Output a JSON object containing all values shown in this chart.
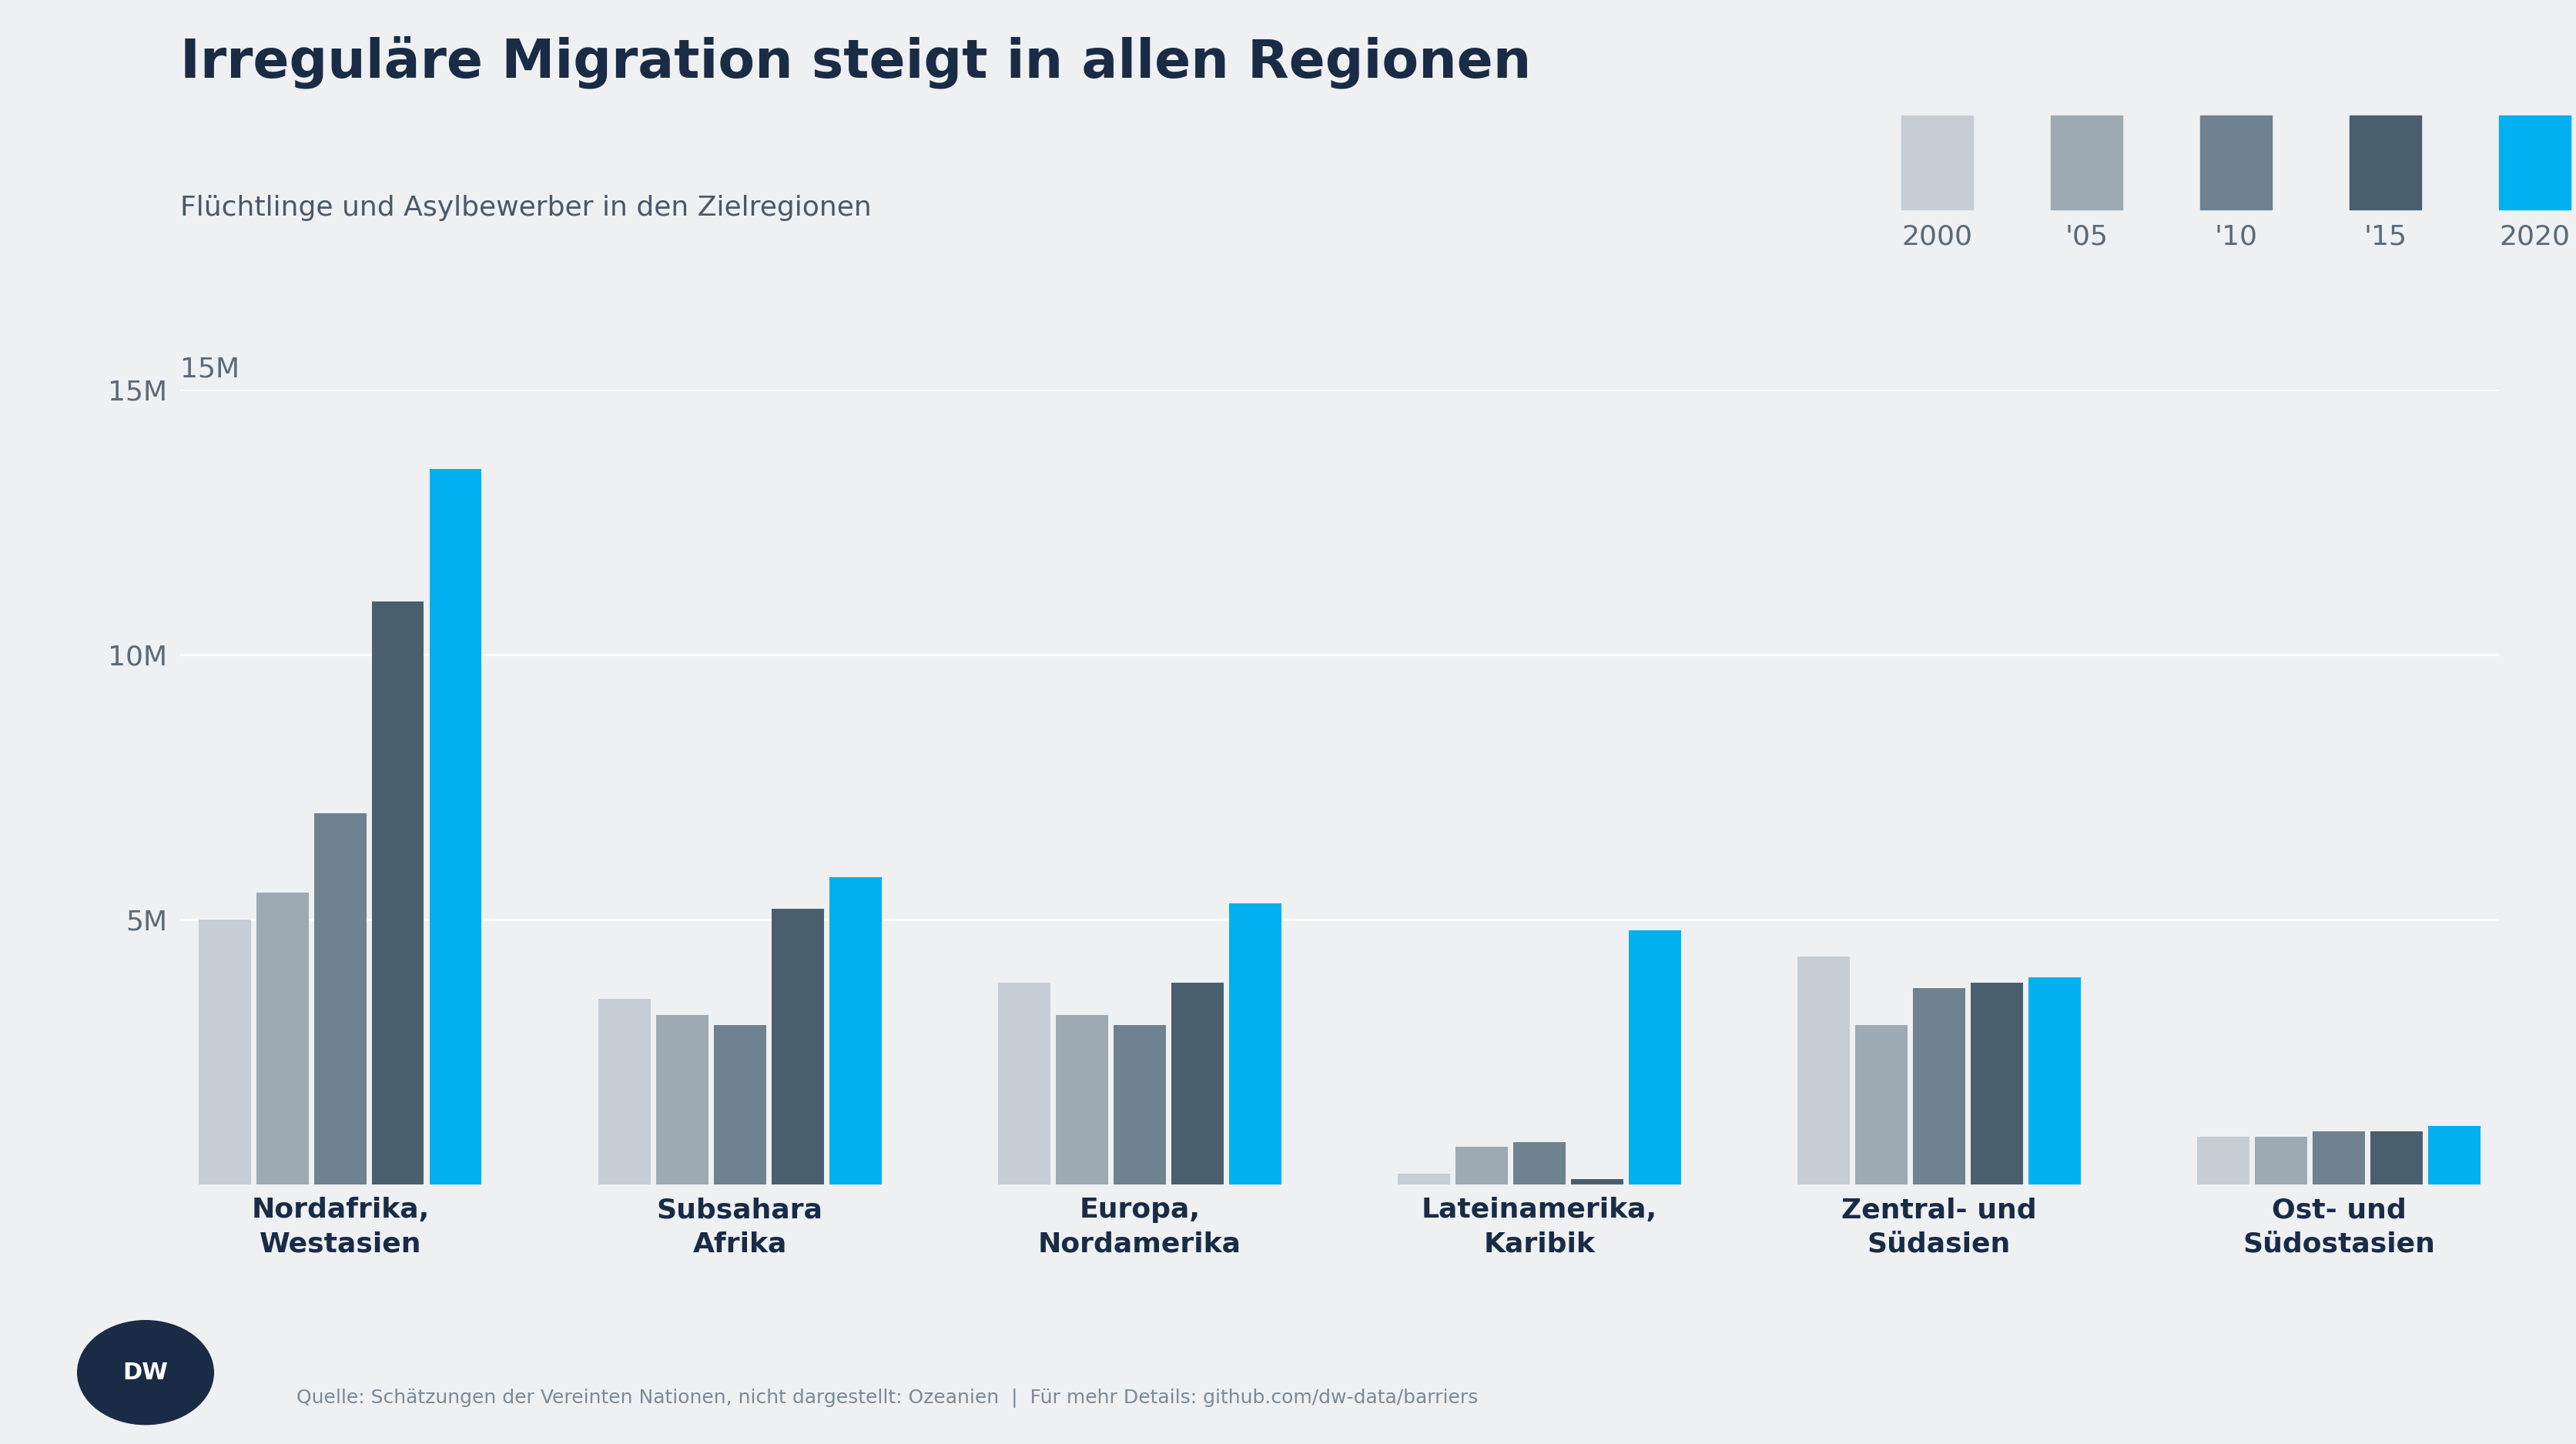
{
  "title": "Irreguläre Migration steigt in allen Regionen",
  "subtitle": "Flüchtlinge und Asylbewerber in den Zielregionen",
  "footnote": "Quelle: Schätzungen der Vereinten Nationen, nicht dargestellt: Ozeanien  |  Für mehr Details: github.com/dw-data/barriers",
  "categories": [
    "Nordafrika,\nWestasien",
    "Subsahara\nAfrika",
    "Europa,\nNordamerika",
    "Lateinamerika,\nKaribik",
    "Zentral- und\nSüdasien",
    "Ost- und\nSüdostasien"
  ],
  "years": [
    "2000",
    "'05",
    "'10",
    "'15",
    "2020"
  ],
  "colors": [
    "#c6cdd4",
    "#9daab3",
    "#6e8290",
    "#4a5f6e",
    "#00b0f0"
  ],
  "data": [
    [
      5.0,
      5.5,
      7.0,
      11.0,
      13.5
    ],
    [
      3.5,
      3.2,
      3.0,
      5.2,
      5.8
    ],
    [
      3.8,
      3.2,
      3.0,
      3.8,
      5.3
    ],
    [
      0.2,
      0.7,
      0.8,
      0.1,
      4.8
    ],
    [
      4.3,
      3.0,
      3.7,
      3.8,
      3.9
    ],
    [
      0.9,
      0.9,
      1.0,
      1.0,
      1.1
    ]
  ],
  "ylim": [
    0,
    15
  ],
  "yticks": [
    5,
    10,
    15
  ],
  "ytick_labels": [
    "5M",
    "10M",
    "15M"
  ],
  "background_color": "#eef0f2",
  "title_color": "#1a2b45",
  "subtitle_color": "#4a5968",
  "axis_label_color": "#5a6a78",
  "footnote_color": "#7a8a98",
  "title_fontsize": 50,
  "subtitle_fontsize": 26,
  "footnote_fontsize": 18,
  "tick_fontsize": 26,
  "category_fontsize": 26,
  "legend_fontsize": 26
}
